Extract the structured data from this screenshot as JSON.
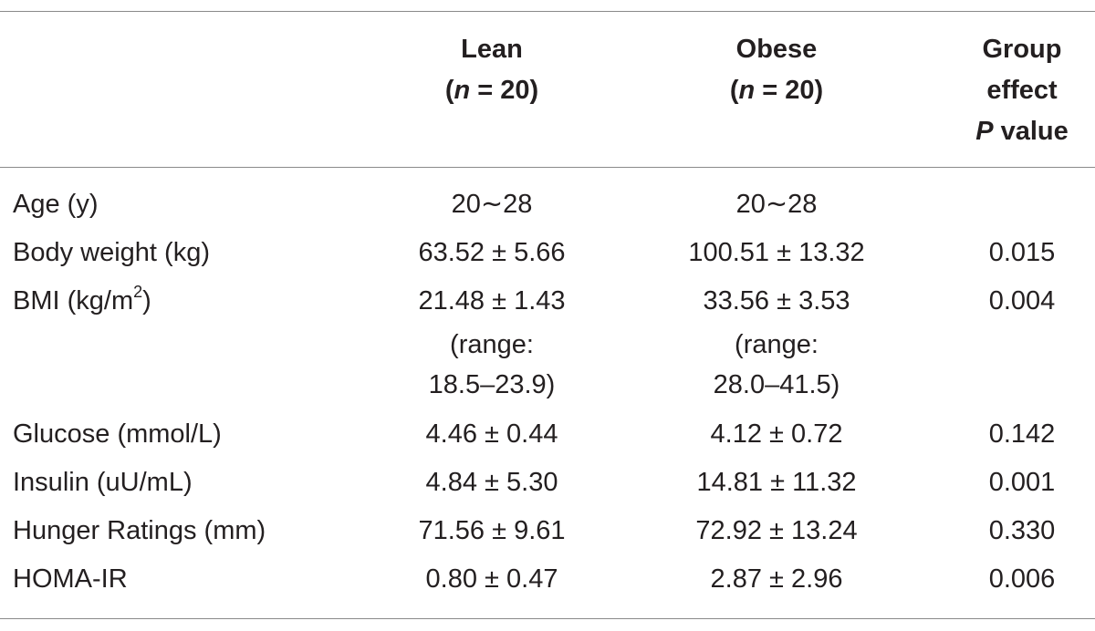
{
  "header": {
    "lean": [
      "Lean",
      "(",
      "n",
      " = 20)"
    ],
    "obese": [
      "Obese",
      "(",
      "n",
      " = 20)"
    ],
    "pvalue": [
      "Group",
      "effect",
      "P",
      " value"
    ]
  },
  "rows": [
    {
      "label": "Age (y)",
      "lean": [
        "20∼28"
      ],
      "obese": [
        "20∼28"
      ],
      "p": ""
    },
    {
      "label": "Body weight (kg)",
      "lean": [
        "63.52 ± 5.66"
      ],
      "obese": [
        "100.51 ± 13.32"
      ],
      "p": "0.015"
    },
    {
      "label": "BMI (kg/m",
      "label_sup": "2",
      "label_end": ")",
      "lean": [
        "21.48 ± 1.43",
        "(range:",
        "18.5–23.9)"
      ],
      "obese": [
        "33.56 ± 3.53",
        "(range:",
        "28.0–41.5)"
      ],
      "p": "0.004"
    },
    {
      "label": "Glucose (mmol/L)",
      "lean": [
        "4.46 ± 0.44"
      ],
      "obese": [
        "4.12 ± 0.72"
      ],
      "p": "0.142"
    },
    {
      "label": "Insulin (uU/mL)",
      "lean": [
        "4.84 ± 5.30"
      ],
      "obese": [
        "14.81 ± 11.32"
      ],
      "p": "0.001"
    },
    {
      "label": "Hunger Ratings (mm)",
      "lean": [
        "71.56 ± 9.61"
      ],
      "obese": [
        "72.92 ± 13.24"
      ],
      "p": "0.330"
    },
    {
      "label": "HOMA-IR",
      "lean": [
        "0.80 ± 0.47"
      ],
      "obese": [
        "2.87 ± 2.96"
      ],
      "p": "0.006"
    }
  ]
}
